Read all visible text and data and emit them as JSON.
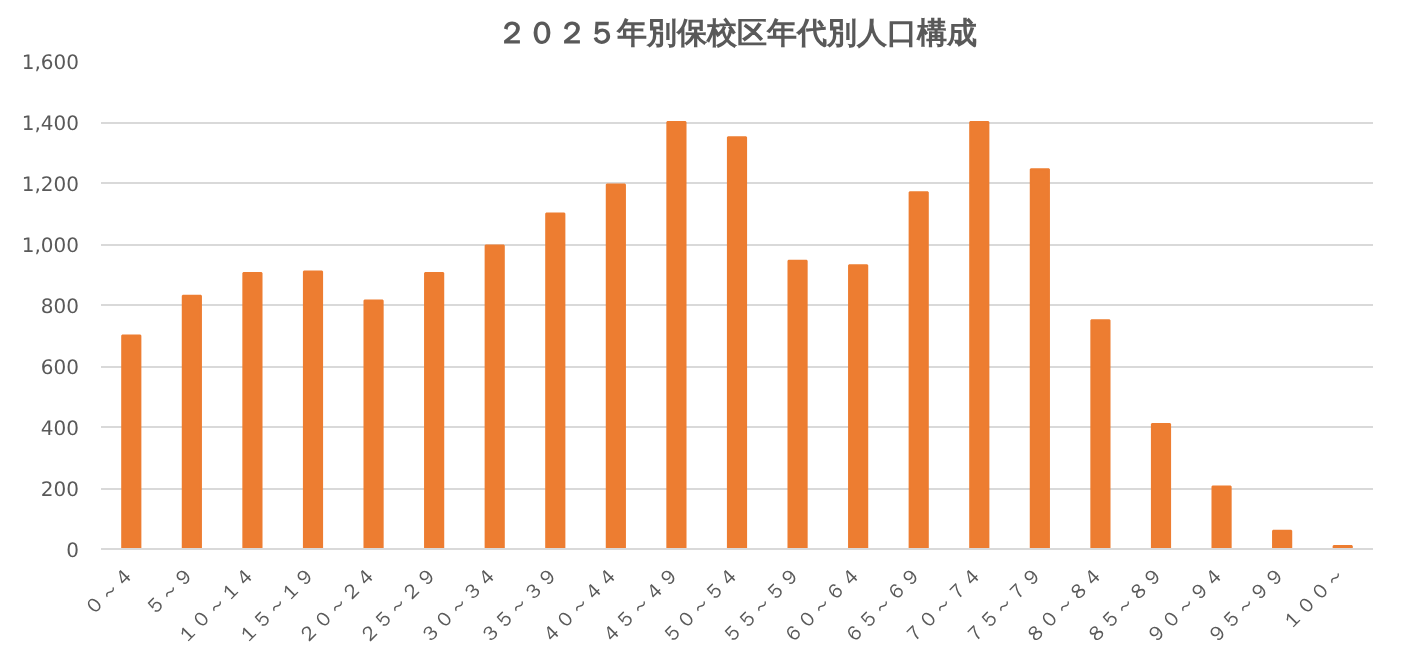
{
  "chart_data": {
    "type": "bar",
    "title": "２０２５年別保校区年代別人口構成",
    "categories": [
      "０～４",
      "５～９",
      "１０～１４",
      "１５～１９",
      "２０～２４",
      "２５～２９",
      "３０～３４",
      "３５～３９",
      "４０～４４",
      "４５～４９",
      "５０～５４",
      "５５～５９",
      "６０～６４",
      "６５～６９",
      "７０～７４",
      "７５～７９",
      "８０～８４",
      "８５～８９",
      "９０～９４",
      "９５～９９",
      "１００～"
    ],
    "values": [
      700,
      830,
      905,
      910,
      815,
      905,
      995,
      1100,
      1195,
      1400,
      1350,
      945,
      930,
      1170,
      1400,
      1245,
      750,
      410,
      205,
      60,
      10
    ],
    "color": "#ed7d31",
    "ylim": [
      0,
      1600
    ],
    "yticks": [
      {
        "value": 0,
        "label": "0"
      },
      {
        "value": 200,
        "label": "200"
      },
      {
        "value": 400,
        "label": "400"
      },
      {
        "value": 600,
        "label": "600"
      },
      {
        "value": 800,
        "label": "800"
      },
      {
        "value": 1000,
        "label": "1,000"
      },
      {
        "value": 1200,
        "label": "1,200"
      },
      {
        "value": 1400,
        "label": "1,400"
      },
      {
        "value": 1600,
        "label": "1,600"
      }
    ],
    "grid": "y"
  }
}
